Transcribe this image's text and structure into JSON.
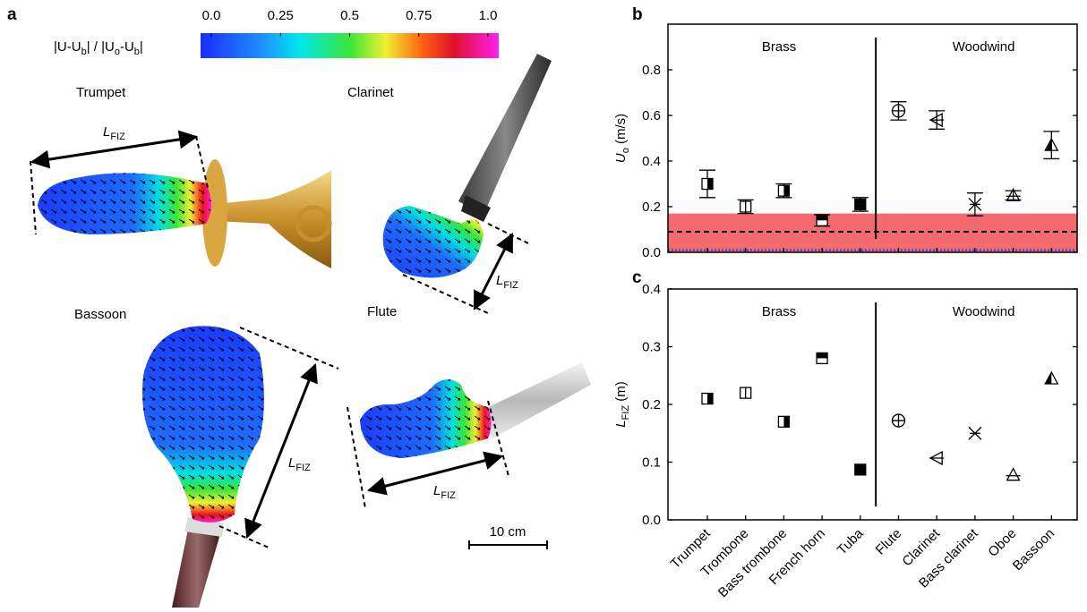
{
  "panels": {
    "a": "a",
    "b": "b",
    "c": "c"
  },
  "colorbar": {
    "label_parts": [
      "|U-U",
      "b",
      "| / |U",
      "o",
      "-U",
      "b",
      "|"
    ],
    "clim": [
      0,
      1
    ],
    "ticks": [
      {
        "value": 0,
        "label": "0.0"
      },
      0.25,
      0.5,
      0.75,
      {
        "value": 1,
        "label": "1.0"
      }
    ]
  },
  "instruments": {
    "trumpet": "Trumpet",
    "clarinet": "Clarinet",
    "bassoon": "Bassoon",
    "flute": "Flute"
  },
  "length_label": [
    "L",
    "FIZ"
  ],
  "scale_bar": "10 cm",
  "chart_data": [
    {
      "type": "errorbar",
      "y_label_parts": [
        "U",
        "o",
        " (m/s)"
      ],
      "groups": [
        "Brass",
        "Woodwind"
      ],
      "values": [
        0.3,
        0.2,
        0.27,
        0.14,
        0.21,
        0.62,
        0.58,
        0.21,
        0.25,
        0.47
      ],
      "errors": [
        0.06,
        0.03,
        0.03,
        0.025,
        0.03,
        0.04,
        0.04,
        0.05,
        0.02,
        0.06
      ],
      "markers": [
        "sq-right",
        "sq-split",
        "sq-right",
        "sq-top",
        "sq-full",
        "circle-plus",
        "tri-left",
        "x-cross",
        "tri-up",
        "tri-half"
      ],
      "ylim": [
        0,
        1
      ],
      "yticks": [
        {
          "value": 0,
          "label": "0.0"
        },
        0.2,
        0.4,
        0.6,
        0.8
      ],
      "band": [
        0,
        0.17
      ],
      "band_color": "#f46a6e",
      "dashed_line": 0.09,
      "dotted_line": 0.01,
      "dotted_color": "#3a4fd8"
    },
    {
      "type": "dot",
      "y_label_parts": [
        "L",
        "FIZ",
        " (m)"
      ],
      "groups": [
        "Brass",
        "Woodwind"
      ],
      "categories": [
        "Trumpet",
        "Trombone",
        "Bass trombone",
        "French horn",
        "Tuba",
        "Flute",
        "Clarinet",
        "Bass clarinet",
        "Oboe",
        "Bassoon"
      ],
      "values": [
        0.21,
        0.22,
        0.17,
        0.28,
        0.087,
        0.172,
        0.107,
        0.15,
        0.078,
        0.245
      ],
      "markers": [
        "sq-right",
        "sq-split",
        "sq-right",
        "sq-top",
        "sq-full",
        "circle-plus",
        "tri-left",
        "x-cross",
        "tri-up",
        "tri-half"
      ],
      "ylim": [
        0,
        0.4
      ],
      "yticks": [
        {
          "value": 0,
          "label": "0.0"
        },
        0.1,
        0.2,
        0.3,
        0.4
      ]
    }
  ]
}
